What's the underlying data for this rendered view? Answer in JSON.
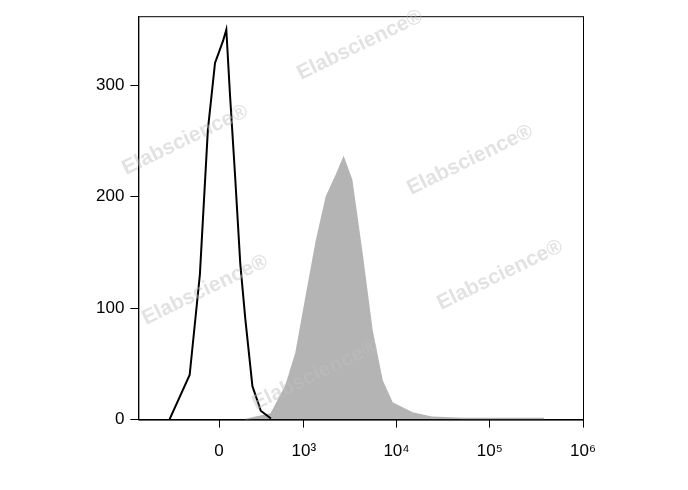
{
  "chart_data": {
    "type": "line",
    "watermark": "Elabscience®",
    "series": [
      {
        "type": "area",
        "color": "#b4b4b4",
        "x": [
          174,
          415,
          625,
          818,
          1057,
          1368,
          1760,
          2265,
          2700,
          3300,
          4240,
          5450,
          7000,
          8980,
          14800,
          24400,
          51700,
          382000
        ],
        "values": [
          0,
          5,
          30,
          60,
          110,
          160,
          200,
          220,
          235,
          215,
          150,
          80,
          35,
          15,
          6,
          2,
          1,
          1
        ]
      },
      {
        "type": "line",
        "color": "#000000",
        "x": [
          -389,
          -198,
          -123,
          -70,
          -25,
          0,
          25,
          45,
          69,
          101,
          137,
          174,
          230,
          305,
          415
        ],
        "values": [
          0,
          40,
          130,
          260,
          320,
          330,
          340,
          350,
          290,
          220,
          140,
          90,
          30,
          8,
          1
        ]
      }
    ],
    "xlim": [
      -900,
      1000000
    ],
    "xticks": [
      0,
      {
        "value": 1000,
        "label": "10³"
      },
      {
        "value": 10000,
        "label": "10⁴"
      },
      {
        "value": 100000,
        "label": "10⁵"
      },
      {
        "value": 1000000,
        "label": "10⁶"
      }
    ],
    "ylim": [
      0,
      362
    ],
    "yticks": [
      0,
      100,
      200,
      300
    ],
    "grid": false
  }
}
